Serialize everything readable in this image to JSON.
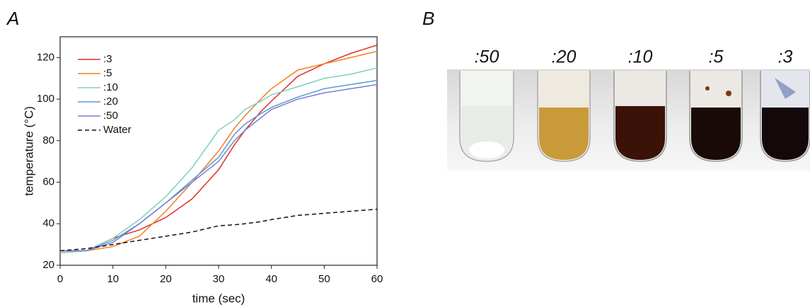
{
  "chart_data": {
    "type": "line",
    "panel_label": "A",
    "xlabel": "time (sec)",
    "ylabel": "temperature (°C)",
    "x": [
      0,
      5,
      10,
      15,
      20,
      25,
      30,
      33,
      35,
      38,
      40,
      45,
      50,
      55,
      60
    ],
    "series": [
      {
        "name": ":3",
        "color": "#e0302a",
        "values": [
          26,
          27,
          33,
          37,
          43,
          52,
          66,
          78,
          85,
          94,
          99,
          111,
          117,
          122,
          126
        ]
      },
      {
        "name": ":5",
        "color": "#f07f1e",
        "values": [
          27,
          27,
          29,
          34,
          46,
          60,
          75,
          86,
          92,
          100,
          105,
          114,
          117,
          120,
          123
        ]
      },
      {
        "name": ":10",
        "color": "#7fd0c0",
        "values": [
          26,
          27,
          33,
          42,
          53,
          67,
          85,
          90,
          95,
          99,
          102,
          106,
          110,
          112,
          115
        ]
      },
      {
        "name": ":20",
        "color": "#5a9bd0",
        "values": [
          27,
          27,
          32,
          40,
          50,
          61,
          72,
          83,
          88,
          93,
          96,
          101,
          105,
          107,
          109
        ]
      },
      {
        "name": ":50",
        "color": "#7a7fd0",
        "values": [
          27,
          27,
          31,
          40,
          50,
          60,
          70,
          80,
          85,
          91,
          95,
          100,
          103,
          105,
          107
        ]
      },
      {
        "name": "Water",
        "color": "#111111",
        "dashed": true,
        "values": [
          27,
          28,
          30,
          32,
          34,
          36,
          39,
          39.5,
          40,
          41,
          42,
          44,
          45,
          46,
          47
        ]
      }
    ],
    "xlim": [
      0,
      60
    ],
    "xticks": [
      0,
      10,
      20,
      30,
      40,
      50,
      60
    ],
    "ylim": [
      20,
      130
    ],
    "yticks": [
      20,
      40,
      60,
      80,
      100,
      120
    ],
    "legend": "upper left"
  },
  "photo": {
    "panel_label": "B",
    "samples": [
      ":50",
      ":20",
      ":10",
      ":5",
      ":3"
    ]
  }
}
